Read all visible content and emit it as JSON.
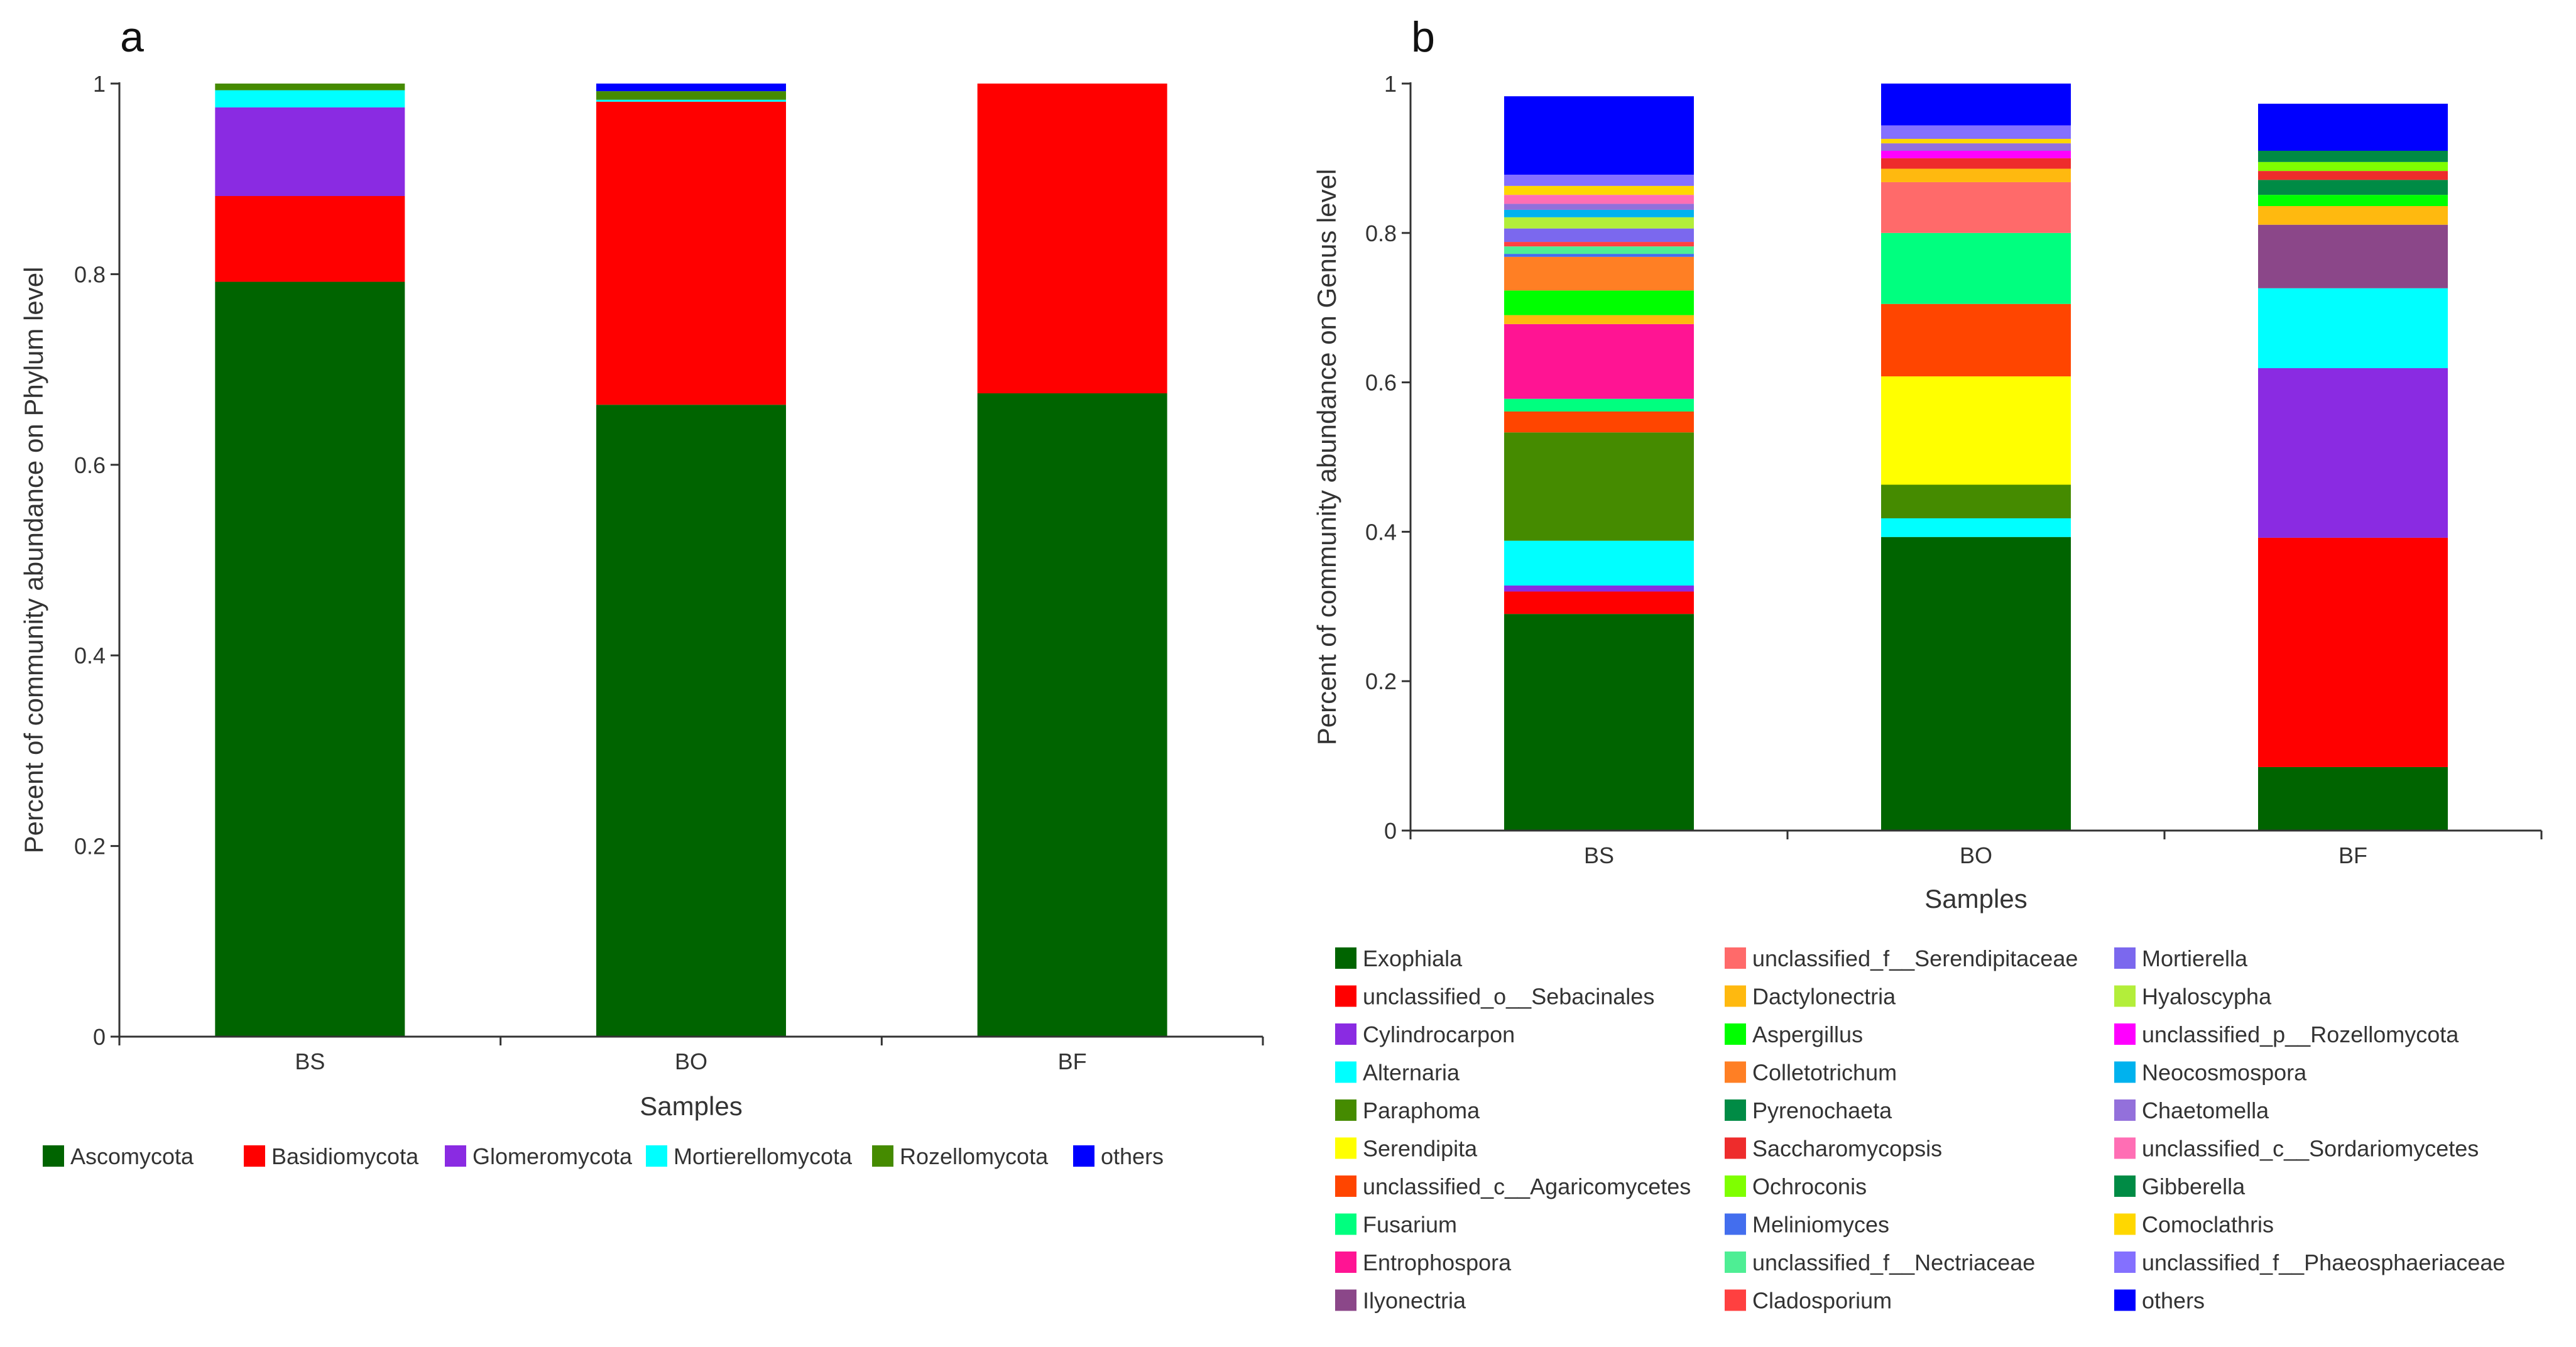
{
  "chart_data": [
    {
      "panel_label": "a",
      "type": "bar",
      "stacked": true,
      "xlabel": "Samples",
      "ylabel": "Percent of community abundance on Phylum level",
      "ylim": [
        0,
        1
      ],
      "yticks": [
        "0",
        "0.2",
        "0.4",
        "0.6",
        "0.8",
        "1"
      ],
      "categories": [
        "BS",
        "BO",
        "BF"
      ],
      "legend_position": "bottom",
      "series": [
        {
          "name": "Ascomycota",
          "color": "#006400",
          "values": [
            0.792,
            0.663,
            0.675
          ]
        },
        {
          "name": "Basidiomycota",
          "color": "#FF0000",
          "values": [
            0.09,
            0.318,
            0.325
          ]
        },
        {
          "name": "Glomeromycota",
          "color": "#8A2BE2",
          "values": [
            0.093,
            0.0,
            0.0
          ]
        },
        {
          "name": "Mortierellomycota",
          "color": "#00FFFF",
          "values": [
            0.018,
            0.002,
            0.0
          ]
        },
        {
          "name": "Rozellomycota",
          "color": "#458B00",
          "values": [
            0.007,
            0.009,
            0.0
          ]
        },
        {
          "name": "others",
          "color": "#0000FF",
          "values": [
            0.0,
            0.008,
            0.0
          ]
        }
      ]
    },
    {
      "panel_label": "b",
      "type": "bar",
      "stacked": true,
      "xlabel": "Samples",
      "ylabel": "Percent of community abundance on Genus level",
      "ylim": [
        0,
        1
      ],
      "yticks": [
        "0",
        "0.2",
        "0.4",
        "0.6",
        "0.8",
        "1"
      ],
      "categories": [
        "BS",
        "BO",
        "BF"
      ],
      "legend_position": "bottom",
      "series": [
        {
          "name": "Exophiala",
          "color": "#006400",
          "values": [
            0.29,
            0.393,
            0.085
          ]
        },
        {
          "name": "unclassified_o__Sebacinales",
          "color": "#FF0000",
          "values": [
            0.03,
            0.0,
            0.307
          ]
        },
        {
          "name": "Cylindrocarpon",
          "color": "#8A2BE2",
          "values": [
            0.008,
            0.0,
            0.227
          ]
        },
        {
          "name": "Alternaria",
          "color": "#00FFFF",
          "values": [
            0.06,
            0.025,
            0.107
          ]
        },
        {
          "name": "Paraphoma",
          "color": "#458B00",
          "values": [
            0.145,
            0.045,
            0.0
          ]
        },
        {
          "name": "Serendipita",
          "color": "#FFFF00",
          "values": [
            0.0,
            0.145,
            0.0
          ]
        },
        {
          "name": "unclassified_c__Agaricomycetes",
          "color": "#FF4500",
          "values": [
            0.028,
            0.097,
            0.0
          ]
        },
        {
          "name": "Fusarium",
          "color": "#00FF7F",
          "values": [
            0.017,
            0.095,
            0.0
          ]
        },
        {
          "name": "Entrophospora",
          "color": "#FF1493",
          "values": [
            0.1,
            0.0,
            0.0
          ]
        },
        {
          "name": "Ilyonectria",
          "color": "#8B4789",
          "values": [
            0.0,
            0.0,
            0.085
          ]
        },
        {
          "name": "unclassified_f__Serendipitaceae",
          "color": "#FF6A6A",
          "values": [
            0.0,
            0.068,
            0.0
          ]
        },
        {
          "name": "Dactylonectria",
          "color": "#FFB90F",
          "values": [
            0.012,
            0.018,
            0.025
          ]
        },
        {
          "name": "Aspergillus",
          "color": "#00FF00",
          "values": [
            0.033,
            0.0,
            0.015
          ]
        },
        {
          "name": "Colletotrichum",
          "color": "#FF7F24",
          "values": [
            0.045,
            0.0,
            0.0
          ]
        },
        {
          "name": "Pyrenochaeta",
          "color": "#008B45",
          "values": [
            0.0,
            0.0,
            0.02
          ]
        },
        {
          "name": "Saccharomycopsis",
          "color": "#EE2C2C",
          "values": [
            0.0,
            0.014,
            0.012
          ]
        },
        {
          "name": "Ochroconis",
          "color": "#7FFF00",
          "values": [
            0.0,
            0.0,
            0.012
          ]
        },
        {
          "name": "Meliniomyces",
          "color": "#436EEE",
          "values": [
            0.004,
            0.0,
            0.0
          ]
        },
        {
          "name": "unclassified_f__Nectriaceae",
          "color": "#4EEE94",
          "values": [
            0.01,
            0.0,
            0.0
          ]
        },
        {
          "name": "Cladosporium",
          "color": "#FF4040",
          "values": [
            0.006,
            0.0,
            0.0
          ]
        },
        {
          "name": "Mortierella",
          "color": "#7B68EE",
          "values": [
            0.018,
            0.0,
            0.0
          ]
        },
        {
          "name": "Hyaloscypha",
          "color": "#B3EE3A",
          "values": [
            0.015,
            0.0,
            0.0
          ]
        },
        {
          "name": "unclassified_p__Rozellomycota",
          "color": "#FF00FF",
          "values": [
            0.0,
            0.01,
            0.0
          ]
        },
        {
          "name": "Neocosmospora",
          "color": "#00B2EE",
          "values": [
            0.01,
            0.0,
            0.0
          ]
        },
        {
          "name": "Chaetomella",
          "color": "#9370DB",
          "values": [
            0.008,
            0.01,
            0.0
          ]
        },
        {
          "name": "unclassified_c__Sordariomycetes",
          "color": "#FF6EB4",
          "values": [
            0.012,
            0.0,
            0.0
          ]
        },
        {
          "name": "Gibberella",
          "color": "#008B45",
          "values": [
            0.0,
            0.0,
            0.015
          ]
        },
        {
          "name": "Comoclathris",
          "color": "#FFD700",
          "values": [
            0.012,
            0.006,
            0.0
          ]
        },
        {
          "name": "unclassified_f__Phaeosphaeriaceae",
          "color": "#8470FF",
          "values": [
            0.015,
            0.018,
            0.0
          ]
        },
        {
          "name": "others",
          "color": "#0000FF",
          "values": [
            0.105,
            0.056,
            0.063
          ]
        }
      ]
    }
  ]
}
